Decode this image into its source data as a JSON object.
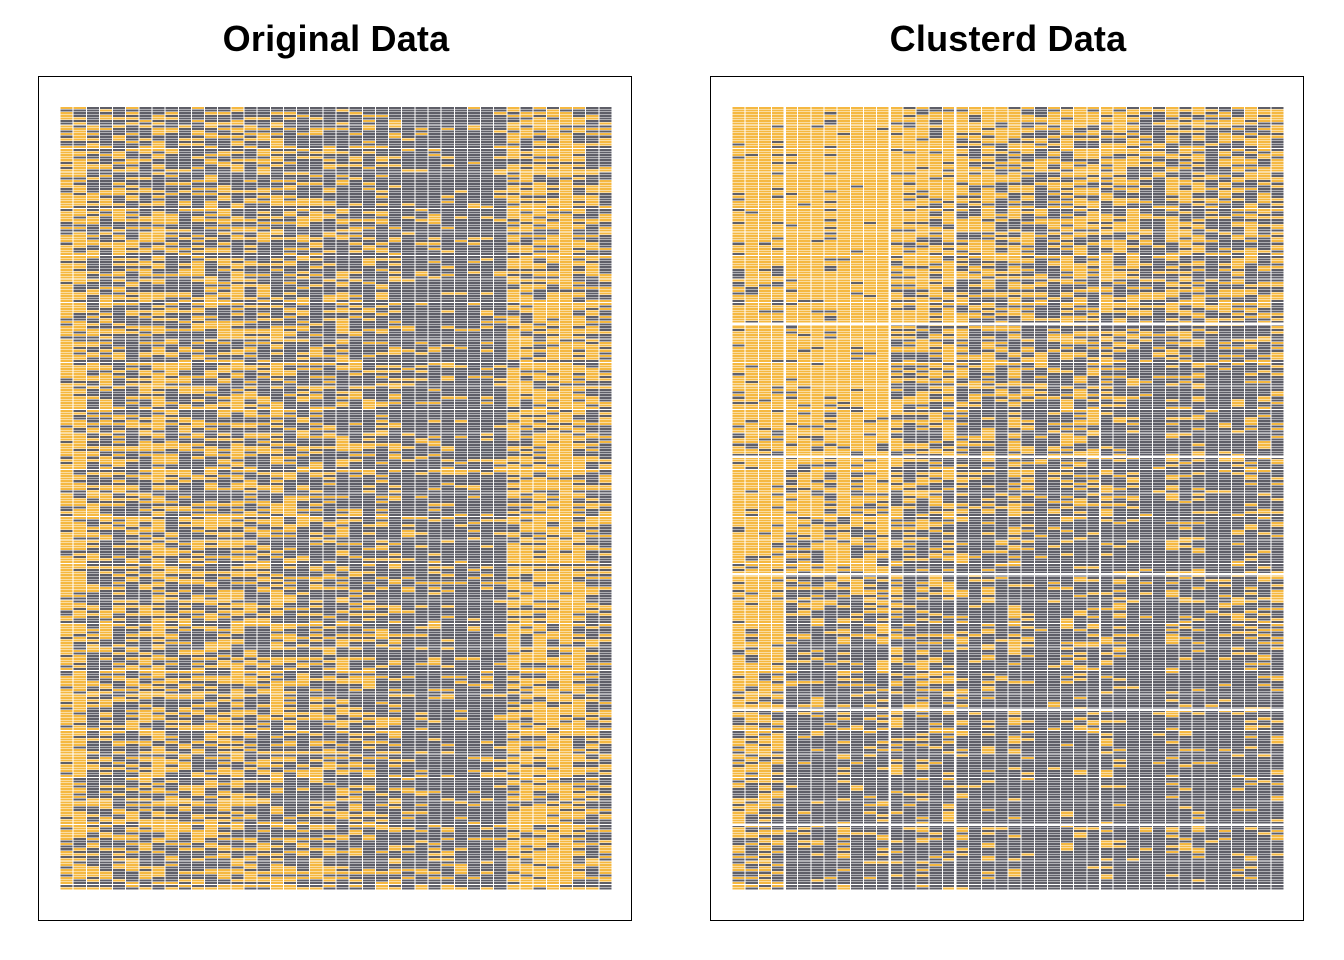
{
  "chart_data": [
    {
      "type": "heatmap",
      "title": "Original Data",
      "n_rows": 300,
      "n_cols": 42,
      "colors": {
        "one": "#F5B841",
        "zero": "#5F5F68",
        "separator": "#FFFFFF"
      },
      "column_one_frequency": [
        0.8,
        0.7,
        0.38,
        0.42,
        0.4,
        0.38,
        0.45,
        0.6,
        0.4,
        0.38,
        0.42,
        0.4,
        0.45,
        0.52,
        0.42,
        0.4,
        0.46,
        0.4,
        0.36,
        0.38,
        0.3,
        0.34,
        0.28,
        0.28,
        0.3,
        0.28,
        0.16,
        0.14,
        0.14,
        0.18,
        0.12,
        0.1,
        0.12,
        0.12,
        0.7,
        0.68,
        0.66,
        0.72,
        0.92,
        0.58,
        0.42,
        0.38
      ]
    },
    {
      "type": "heatmap",
      "title": "Clusterd Data",
      "n_rows": 300,
      "n_cols": 42,
      "colors": {
        "one": "#F5B841",
        "zero": "#5F5F68",
        "separator": "#FFFFFF"
      },
      "column_groups": [
        4,
        8,
        5,
        11,
        14
      ],
      "row_groups": [
        83,
        51,
        45,
        52,
        44,
        25
      ],
      "cell_one_frequency": [
        [
          0.9,
          0.95,
          0.72,
          0.58,
          0.48
        ],
        [
          0.85,
          0.88,
          0.46,
          0.4,
          0.22
        ],
        [
          0.82,
          0.7,
          0.38,
          0.26,
          0.18
        ],
        [
          0.72,
          0.3,
          0.32,
          0.2,
          0.14
        ],
        [
          0.52,
          0.12,
          0.24,
          0.14,
          0.1
        ],
        [
          0.45,
          0.1,
          0.22,
          0.12,
          0.1
        ]
      ]
    }
  ]
}
